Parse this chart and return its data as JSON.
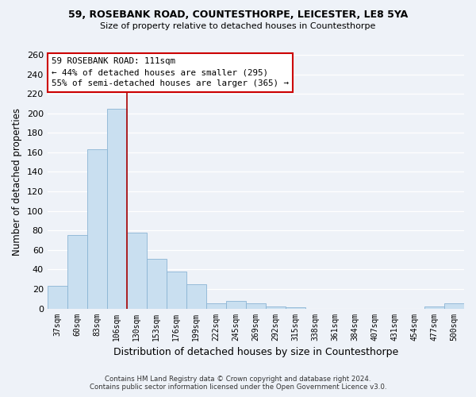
{
  "title1": "59, ROSEBANK ROAD, COUNTESTHORPE, LEICESTER, LE8 5YA",
  "title2": "Size of property relative to detached houses in Countesthorpe",
  "xlabel": "Distribution of detached houses by size in Countesthorpe",
  "ylabel": "Number of detached properties",
  "bar_color": "#c9dff0",
  "bar_edge_color": "#8ab4d4",
  "categories": [
    "37sqm",
    "60sqm",
    "83sqm",
    "106sqm",
    "130sqm",
    "153sqm",
    "176sqm",
    "199sqm",
    "222sqm",
    "245sqm",
    "269sqm",
    "292sqm",
    "315sqm",
    "338sqm",
    "361sqm",
    "384sqm",
    "407sqm",
    "431sqm",
    "454sqm",
    "477sqm",
    "500sqm"
  ],
  "values": [
    23,
    75,
    163,
    205,
    78,
    51,
    38,
    25,
    5,
    8,
    5,
    2,
    1,
    0,
    0,
    0,
    0,
    0,
    0,
    2,
    5
  ],
  "ylim": [
    0,
    260
  ],
  "yticks": [
    0,
    20,
    40,
    60,
    80,
    100,
    120,
    140,
    160,
    180,
    200,
    220,
    240,
    260
  ],
  "vline_index": 3.5,
  "vline_color": "#aa0000",
  "annotation_title": "59 ROSEBANK ROAD: 111sqm",
  "annotation_line1": "← 44% of detached houses are smaller (295)",
  "annotation_line2": "55% of semi-detached houses are larger (365) →",
  "footer1": "Contains HM Land Registry data © Crown copyright and database right 2024.",
  "footer2": "Contains public sector information licensed under the Open Government Licence v3.0.",
  "background_color": "#eef2f8",
  "plot_background": "#eef2f8"
}
